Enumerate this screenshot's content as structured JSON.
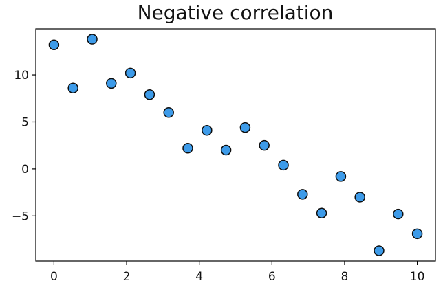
{
  "chart_data": {
    "type": "scatter",
    "title": "Negative correlation",
    "xlabel": "",
    "ylabel": "",
    "x": [
      0,
      0.526,
      1.053,
      1.579,
      2.105,
      2.632,
      3.158,
      3.684,
      4.211,
      4.737,
      5.263,
      5.789,
      6.316,
      6.842,
      7.368,
      7.895,
      8.421,
      8.947,
      9.474,
      10
    ],
    "y": [
      13.2,
      8.6,
      13.8,
      9.1,
      10.2,
      7.9,
      6.0,
      2.2,
      4.1,
      2.0,
      4.4,
      2.5,
      0.4,
      -2.7,
      -4.7,
      -0.8,
      -3.0,
      -8.7,
      -4.8,
      -6.9
    ],
    "xlim": [
      -0.5,
      10.5
    ],
    "ylim": [
      -9.8,
      14.9
    ],
    "xticks": [
      0,
      2,
      4,
      6,
      8,
      10
    ],
    "yticks": [
      -5,
      0,
      5,
      10
    ],
    "xtick_labels": [
      "0",
      "2",
      "4",
      "6",
      "8",
      "10"
    ],
    "ytick_labels": [
      "−5",
      "0",
      "5",
      "10"
    ],
    "grid": false,
    "marker_color": "#3d9be9",
    "edge_color": "#0d0d0d"
  }
}
